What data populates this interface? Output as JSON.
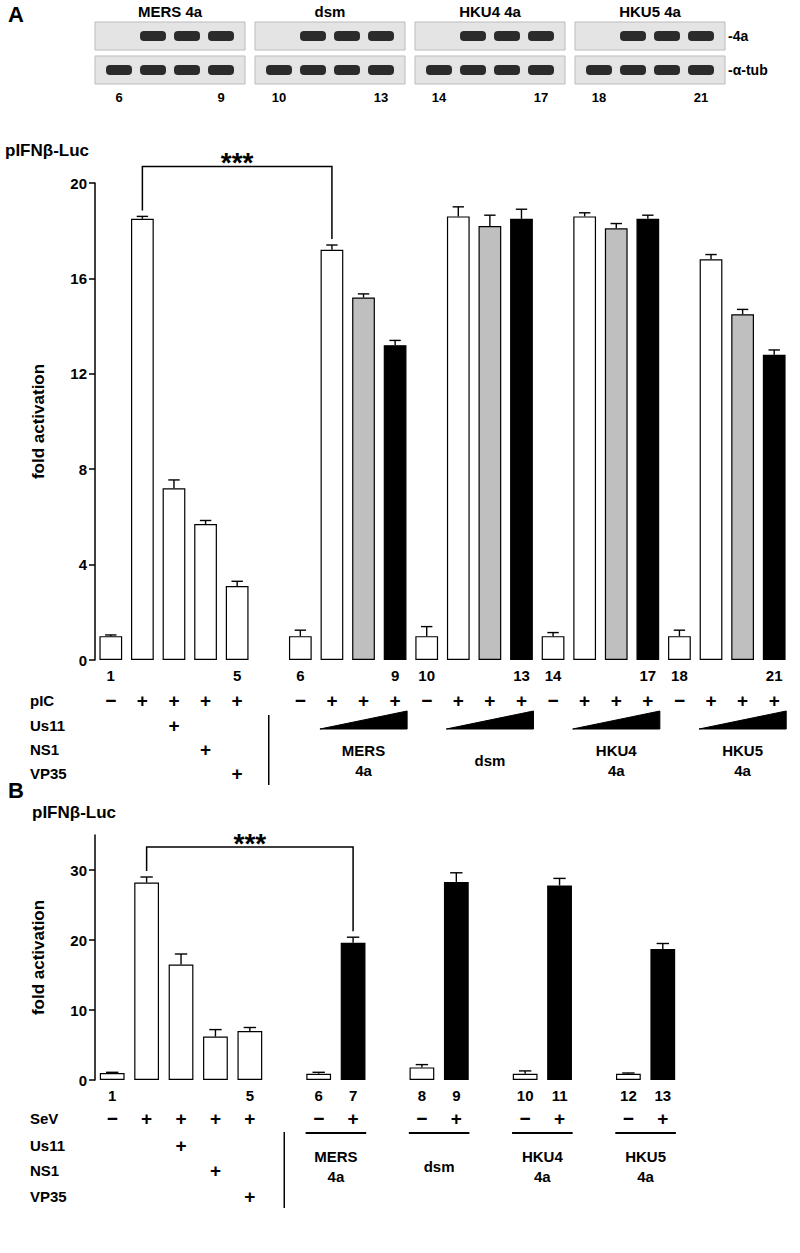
{
  "blots": {
    "row_labels": [
      "-4a",
      "-α-tub"
    ],
    "panels": [
      {
        "title": "MERS 4a",
        "lane_labels": [
          "6",
          null,
          null,
          "9"
        ],
        "bands": [
          [
            false,
            true,
            true,
            true
          ],
          [
            true,
            true,
            true,
            true
          ]
        ]
      },
      {
        "title": "dsm",
        "lane_labels": [
          "10",
          null,
          null,
          "13"
        ],
        "bands": [
          [
            false,
            true,
            true,
            true
          ],
          [
            true,
            true,
            true,
            true
          ]
        ]
      },
      {
        "title": "HKU4 4a",
        "lane_labels": [
          "14",
          null,
          null,
          "17"
        ],
        "bands": [
          [
            false,
            true,
            true,
            true
          ],
          [
            true,
            true,
            true,
            true
          ]
        ]
      },
      {
        "title": "HKU5 4a",
        "lane_labels": [
          "18",
          null,
          null,
          "21"
        ],
        "bands": [
          [
            false,
            true,
            true,
            true
          ],
          [
            true,
            true,
            true,
            true
          ]
        ]
      }
    ]
  },
  "chart_data": [
    {
      "type": "bar",
      "panel_label": "A",
      "title": "pIFNβ-Luc",
      "y_label": "fold activation",
      "categories": [
        "1",
        null,
        null,
        null,
        "5",
        null,
        "6",
        null,
        null,
        "9",
        "10",
        null,
        null,
        "13",
        "14",
        null,
        null,
        "17",
        "18",
        null,
        null,
        "21"
      ],
      "values": [
        1.0,
        18.5,
        7.2,
        5.7,
        3.1,
        null,
        1.0,
        17.2,
        15.2,
        13.2,
        1.0,
        18.6,
        18.2,
        18.5,
        1.0,
        18.6,
        18.1,
        18.5,
        1.0,
        16.8,
        14.5,
        12.8
      ],
      "errors": [
        0.05,
        0.1,
        0.35,
        0.15,
        0.2,
        null,
        0.25,
        0.2,
        0.15,
        0.2,
        0.4,
        0.4,
        0.45,
        0.4,
        0.15,
        0.15,
        0.2,
        0.15,
        0.25,
        0.2,
        0.2,
        0.2
      ],
      "colors": [
        "#ffffff",
        "#ffffff",
        "#ffffff",
        "#ffffff",
        "#ffffff",
        null,
        "#ffffff",
        "#ffffff",
        "#bfbfbf",
        "#000000",
        "#ffffff",
        "#ffffff",
        "#bfbfbf",
        "#000000",
        "#ffffff",
        "#ffffff",
        "#bfbfbf",
        "#000000",
        "#ffffff",
        "#ffffff",
        "#bfbfbf",
        "#000000"
      ],
      "ylim": [
        0,
        20
      ],
      "yticks": [
        0,
        4,
        8,
        12,
        16,
        20
      ],
      "grid": false,
      "annotations": [
        {
          "text": "***",
          "from": 1,
          "to": 7
        }
      ],
      "conditions": [
        {
          "label": "pIC",
          "marks": [
            "−",
            "+",
            "+",
            "+",
            "+",
            null,
            "−",
            "+",
            "+",
            "+",
            "−",
            "+",
            "+",
            "+",
            "−",
            "+",
            "+",
            "+",
            "−",
            "+",
            "+",
            "+"
          ]
        },
        {
          "label": "Us11",
          "marks": [
            null,
            null,
            "+",
            null,
            null,
            null,
            null,
            null,
            null,
            null,
            null,
            null,
            null,
            null,
            null,
            null,
            null,
            null,
            null,
            null,
            null,
            null
          ]
        },
        {
          "label": "NS1",
          "marks": [
            null,
            null,
            null,
            "+",
            null,
            null,
            null,
            null,
            null,
            null,
            null,
            null,
            null,
            null,
            null,
            null,
            null,
            null,
            null,
            null,
            null,
            null
          ]
        },
        {
          "label": "VP35",
          "marks": [
            null,
            null,
            null,
            null,
            "+",
            null,
            null,
            null,
            null,
            null,
            null,
            null,
            null,
            null,
            null,
            null,
            null,
            null,
            null,
            null,
            null,
            null
          ]
        }
      ],
      "groups": [
        {
          "label": "MERS\n4a",
          "from": 7,
          "to": 9,
          "marker": "wedge"
        },
        {
          "label": "dsm",
          "from": 11,
          "to": 13,
          "marker": "wedge"
        },
        {
          "label": "HKU4\n4a",
          "from": 15,
          "to": 17,
          "marker": "wedge"
        },
        {
          "label": "HKU5\n4a",
          "from": 19,
          "to": 21,
          "marker": "wedge"
        }
      ]
    },
    {
      "type": "bar",
      "panel_label": "B",
      "title": "pIFNβ-Luc",
      "y_label": "fold activation",
      "categories": [
        "1",
        null,
        null,
        null,
        "5",
        null,
        "6",
        "7",
        null,
        "8",
        "9",
        null,
        "10",
        "11",
        null,
        "12",
        "13"
      ],
      "values": [
        1.0,
        28.2,
        16.5,
        6.2,
        7.0,
        null,
        0.9,
        19.6,
        null,
        1.8,
        28.3,
        null,
        0.9,
        27.8,
        null,
        0.9,
        18.7
      ],
      "errors": [
        0.1,
        0.8,
        1.5,
        1.0,
        0.5,
        null,
        0.2,
        0.8,
        null,
        0.4,
        1.3,
        null,
        0.4,
        1.0,
        null,
        0.1,
        0.8
      ],
      "colors": [
        "#ffffff",
        "#ffffff",
        "#ffffff",
        "#ffffff",
        "#ffffff",
        null,
        "#ffffff",
        "#000000",
        null,
        "#ffffff",
        "#000000",
        null,
        "#ffffff",
        "#000000",
        null,
        "#ffffff",
        "#000000"
      ],
      "ylim": [
        0,
        35
      ],
      "yticks": [
        0,
        10,
        20,
        30
      ],
      "grid": false,
      "annotations": [
        {
          "text": "***",
          "from": 1,
          "to": 7
        }
      ],
      "conditions": [
        {
          "label": "SeV",
          "marks": [
            "−",
            "+",
            "+",
            "+",
            "+",
            null,
            "−",
            "+",
            null,
            "−",
            "+",
            null,
            "−",
            "+",
            null,
            "−",
            "+"
          ]
        },
        {
          "label": "Us11",
          "marks": [
            null,
            null,
            "+",
            null,
            null,
            null,
            null,
            null,
            null,
            null,
            null,
            null,
            null,
            null,
            null,
            null,
            null
          ]
        },
        {
          "label": "NS1",
          "marks": [
            null,
            null,
            null,
            "+",
            null,
            null,
            null,
            null,
            null,
            null,
            null,
            null,
            null,
            null,
            null,
            null,
            null
          ]
        },
        {
          "label": "VP35",
          "marks": [
            null,
            null,
            null,
            null,
            "+",
            null,
            null,
            null,
            null,
            null,
            null,
            null,
            null,
            null,
            null,
            null,
            null
          ]
        }
      ],
      "groups": [
        {
          "label": "MERS\n4a",
          "from": 6,
          "to": 7,
          "marker": "underline"
        },
        {
          "label": "dsm",
          "from": 9,
          "to": 10,
          "marker": "underline"
        },
        {
          "label": "HKU4\n4a",
          "from": 12,
          "to": 13,
          "marker": "underline"
        },
        {
          "label": "HKU5\n4a",
          "from": 15,
          "to": 16,
          "marker": "underline"
        }
      ]
    }
  ]
}
